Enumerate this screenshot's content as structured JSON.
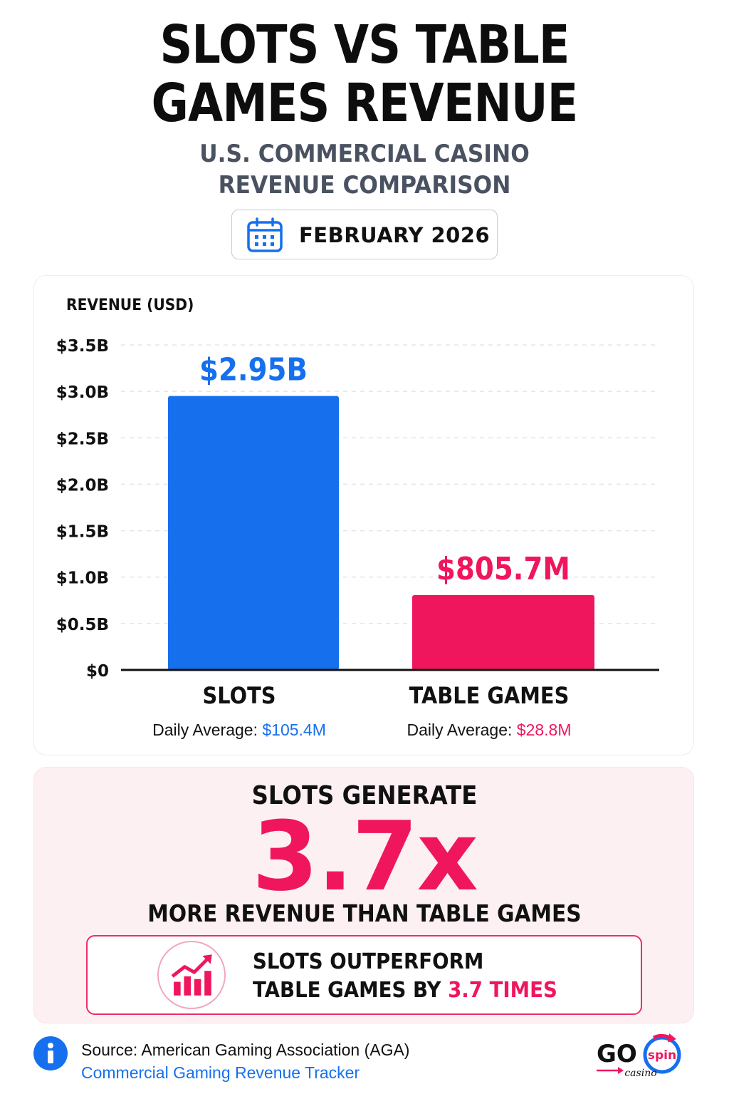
{
  "header": {
    "title_line1": "SLOTS VS TABLE",
    "title_line2": "GAMES REVENUE",
    "subtitle_line1": "U.S. COMMERCIAL CASINO",
    "subtitle_line2": "REVENUE COMPARISON",
    "date": "FEBRUARY 2026",
    "date_icon": "calendar-icon"
  },
  "chart_data": {
    "type": "bar",
    "ylabel": "REVENUE (USD)",
    "ylim": [
      0,
      3.5
    ],
    "y_ticks": [
      0,
      0.5,
      1.0,
      1.5,
      2.0,
      2.5,
      3.0,
      3.5
    ],
    "y_tick_labels": [
      "$0",
      "$0.5B",
      "$1.0B",
      "$1.5B",
      "$2.0B",
      "$2.5B",
      "$3.0B",
      "$3.5B"
    ],
    "grid": true,
    "categories": [
      "SLOTS",
      "TABLE GAMES"
    ],
    "values": [
      2.95,
      0.8057
    ],
    "value_labels": [
      "$2.95B",
      "$805.7M"
    ],
    "colors": [
      "#1670ee",
      "#f0165d"
    ],
    "daily_average_label": "Daily Average:",
    "daily_averages": [
      "$105.4M",
      "$28.8M"
    ]
  },
  "summary": {
    "top": "SLOTS GENERATE",
    "multiplier": "3.7x",
    "bottom": "MORE REVENUE THAN TABLE GAMES",
    "callout_line1": "SLOTS OUTPERFORM",
    "callout_line2_prefix": "TABLE GAMES BY ",
    "callout_line2_highlight": "3.7 TIMES",
    "callout_icon": "growth-chart-icon",
    "accent": "#f0165d"
  },
  "footer": {
    "source": "Source: American Gaming Association (AGA)",
    "tracker": "Commercial Gaming Revenue Tracker",
    "info_icon": "info-icon",
    "logo_main": "GO",
    "logo_badge": "spin",
    "logo_sub": "casino"
  }
}
